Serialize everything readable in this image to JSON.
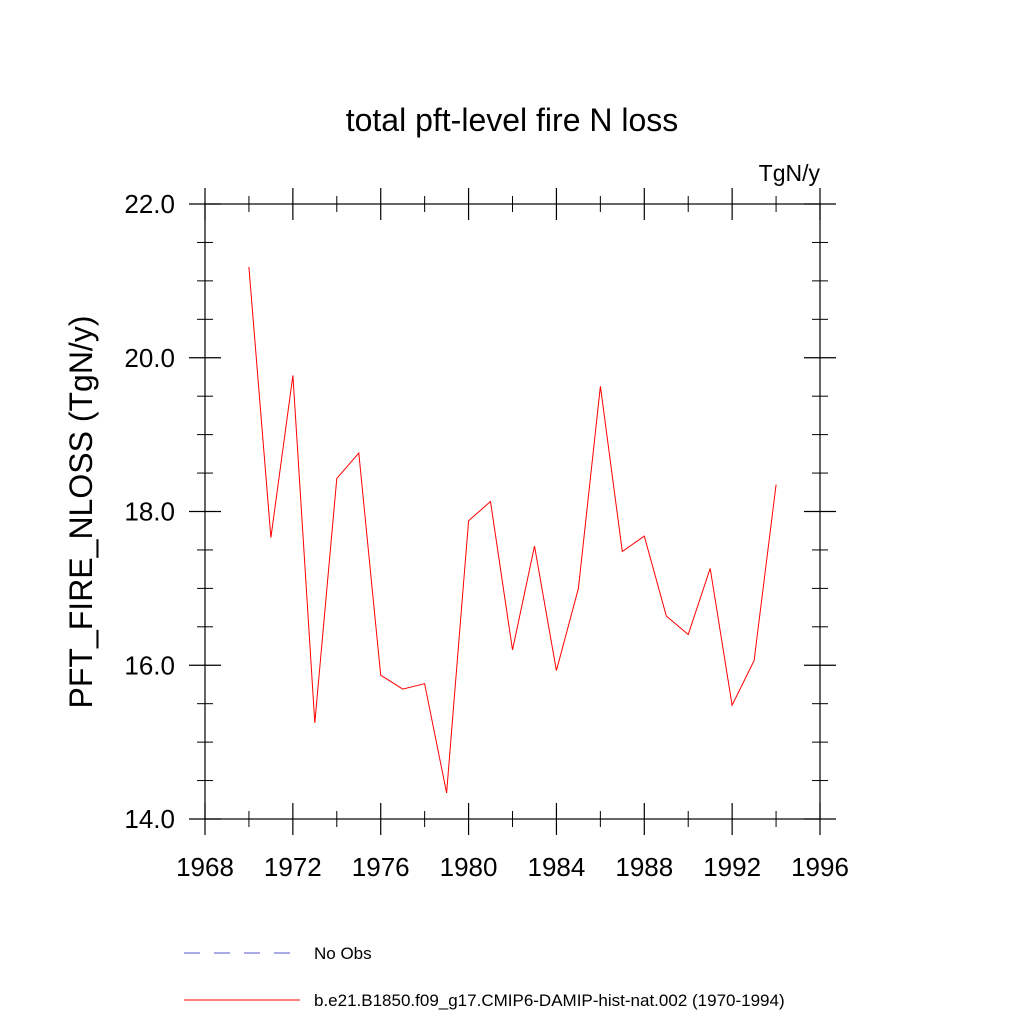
{
  "chart_data": {
    "type": "line",
    "title": "total pft-level fire N loss",
    "units": "TgN/y",
    "ylabel": "PFT_FIRE_NLOSS  (TgN/y)",
    "xlabel": "",
    "xlim": [
      1968,
      1996
    ],
    "ylim": [
      14.0,
      22.0
    ],
    "x_ticks": [
      1968,
      1972,
      1976,
      1980,
      1984,
      1988,
      1992,
      1996
    ],
    "x_tick_labels": [
      "1968",
      "1972",
      "1976",
      "1980",
      "1984",
      "1988",
      "1992",
      "1996"
    ],
    "y_ticks": [
      14.0,
      16.0,
      18.0,
      20.0,
      22.0
    ],
    "y_tick_labels": [
      "14.0",
      "16.0",
      "18.0",
      "20.0",
      "22.0"
    ],
    "y_minor_step": 0.5,
    "x_minor_step": 2,
    "grid": false,
    "legend_position": "bottom",
    "series": [
      {
        "name": "No Obs",
        "color": "#5555cc",
        "dash": "dashed",
        "x": [],
        "y": []
      },
      {
        "name": "b.e21.B1850.f09_g17.CMIP6-DAMIP-hist-nat.002 (1970-1994)",
        "color": "#ff0000",
        "dash": "solid",
        "x": [
          1970,
          1971,
          1972,
          1973,
          1974,
          1975,
          1976,
          1977,
          1978,
          1979,
          1980,
          1981,
          1982,
          1983,
          1984,
          1985,
          1986,
          1987,
          1988,
          1989,
          1990,
          1991,
          1992,
          1993,
          1994
        ],
        "y": [
          21.18,
          17.66,
          19.77,
          15.25,
          18.43,
          18.76,
          15.87,
          15.69,
          15.76,
          14.34,
          17.88,
          18.13,
          16.2,
          17.55,
          15.93,
          17.0,
          19.63,
          17.48,
          17.68,
          16.64,
          16.4,
          17.26,
          15.48,
          16.06,
          18.35
        ]
      }
    ]
  }
}
